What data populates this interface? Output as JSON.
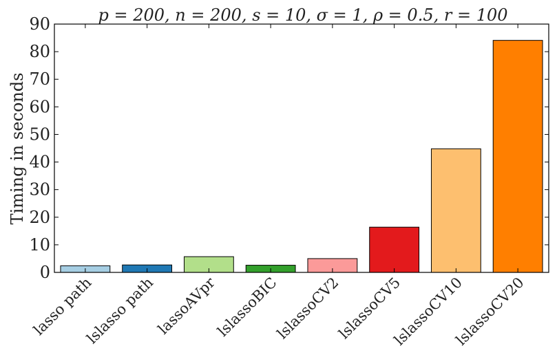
{
  "chart_data": {
    "type": "bar",
    "title": "p = 200, n = 200, s = 10, σ = 1, ρ = 0.5, r = 100",
    "xlabel": "",
    "ylabel": "Timing in seconds",
    "ylim": [
      0,
      90
    ],
    "yticks": [
      0,
      10,
      20,
      30,
      40,
      50,
      60,
      70,
      80,
      90
    ],
    "categories": [
      "lasso path",
      "lslasso path",
      "lassoAVpr",
      "lslassoBIC",
      "lslassoCV2",
      "lslassoCV5",
      "lslassoCV10",
      "lslassoCV20"
    ],
    "values": [
      2.4,
      2.7,
      5.7,
      2.6,
      5.0,
      16.4,
      44.8,
      84.1
    ],
    "colors": [
      "#a6cee3",
      "#1f78b4",
      "#b2df8a",
      "#33a02c",
      "#fb9a99",
      "#e31a1c",
      "#fdbf6f",
      "#ff7f00"
    ],
    "grid": false,
    "legend": "none"
  }
}
